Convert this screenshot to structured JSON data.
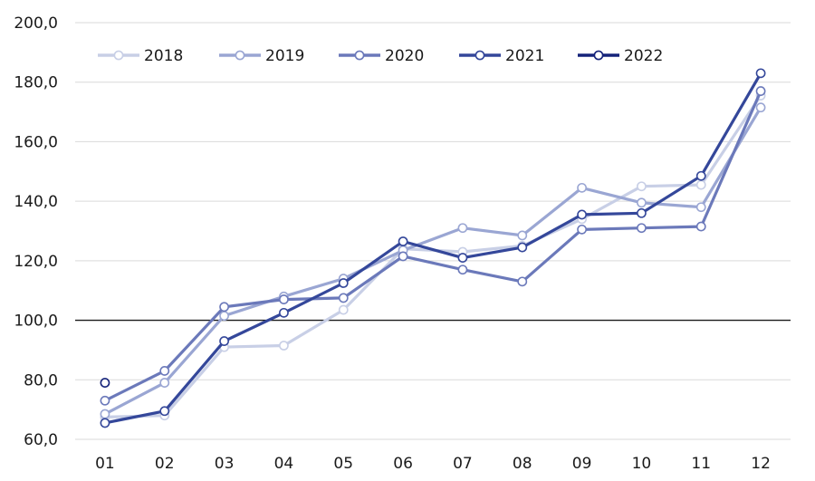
{
  "chart_data": {
    "type": "line",
    "title": "",
    "xlabel": "",
    "ylabel": "",
    "categories": [
      "01",
      "02",
      "03",
      "04",
      "05",
      "06",
      "07",
      "08",
      "09",
      "10",
      "11",
      "12"
    ],
    "ylim": [
      60,
      200
    ],
    "yticks": [
      60,
      80,
      100,
      120,
      140,
      160,
      180,
      200
    ],
    "ytick_labels": [
      "60,0",
      "80,0",
      "100,0",
      "120,0",
      "140,0",
      "160,0",
      "180,0",
      "200,0"
    ],
    "reference_line": 100,
    "grid": true,
    "legend_position": "top-left",
    "series": [
      {
        "name": "2018",
        "color": "#c8cfe6",
        "values": [
          67.5,
          68.0,
          91.0,
          91.5,
          103.5,
          124.0,
          123.0,
          125.0,
          134.0,
          145.0,
          145.5,
          175.5
        ]
      },
      {
        "name": "2019",
        "color": "#9aa6d3",
        "values": [
          68.5,
          79.0,
          101.5,
          108.0,
          114.0,
          123.5,
          131.0,
          128.5,
          144.5,
          139.5,
          138.0,
          171.5
        ]
      },
      {
        "name": "2020",
        "color": "#6b79ba",
        "values": [
          73.0,
          83.0,
          104.5,
          107.0,
          107.5,
          121.5,
          117.0,
          113.0,
          130.5,
          131.0,
          131.5,
          177.0
        ]
      },
      {
        "name": "2021",
        "color": "#34479a",
        "values": [
          65.5,
          69.5,
          93.0,
          102.5,
          112.5,
          126.5,
          121.0,
          124.5,
          135.5,
          136.0,
          148.5,
          183.0
        ]
      },
      {
        "name": "2022",
        "color": "#15237a",
        "values": [
          79.0,
          null,
          null,
          null,
          null,
          null,
          null,
          null,
          null,
          null,
          null,
          null
        ]
      }
    ]
  }
}
